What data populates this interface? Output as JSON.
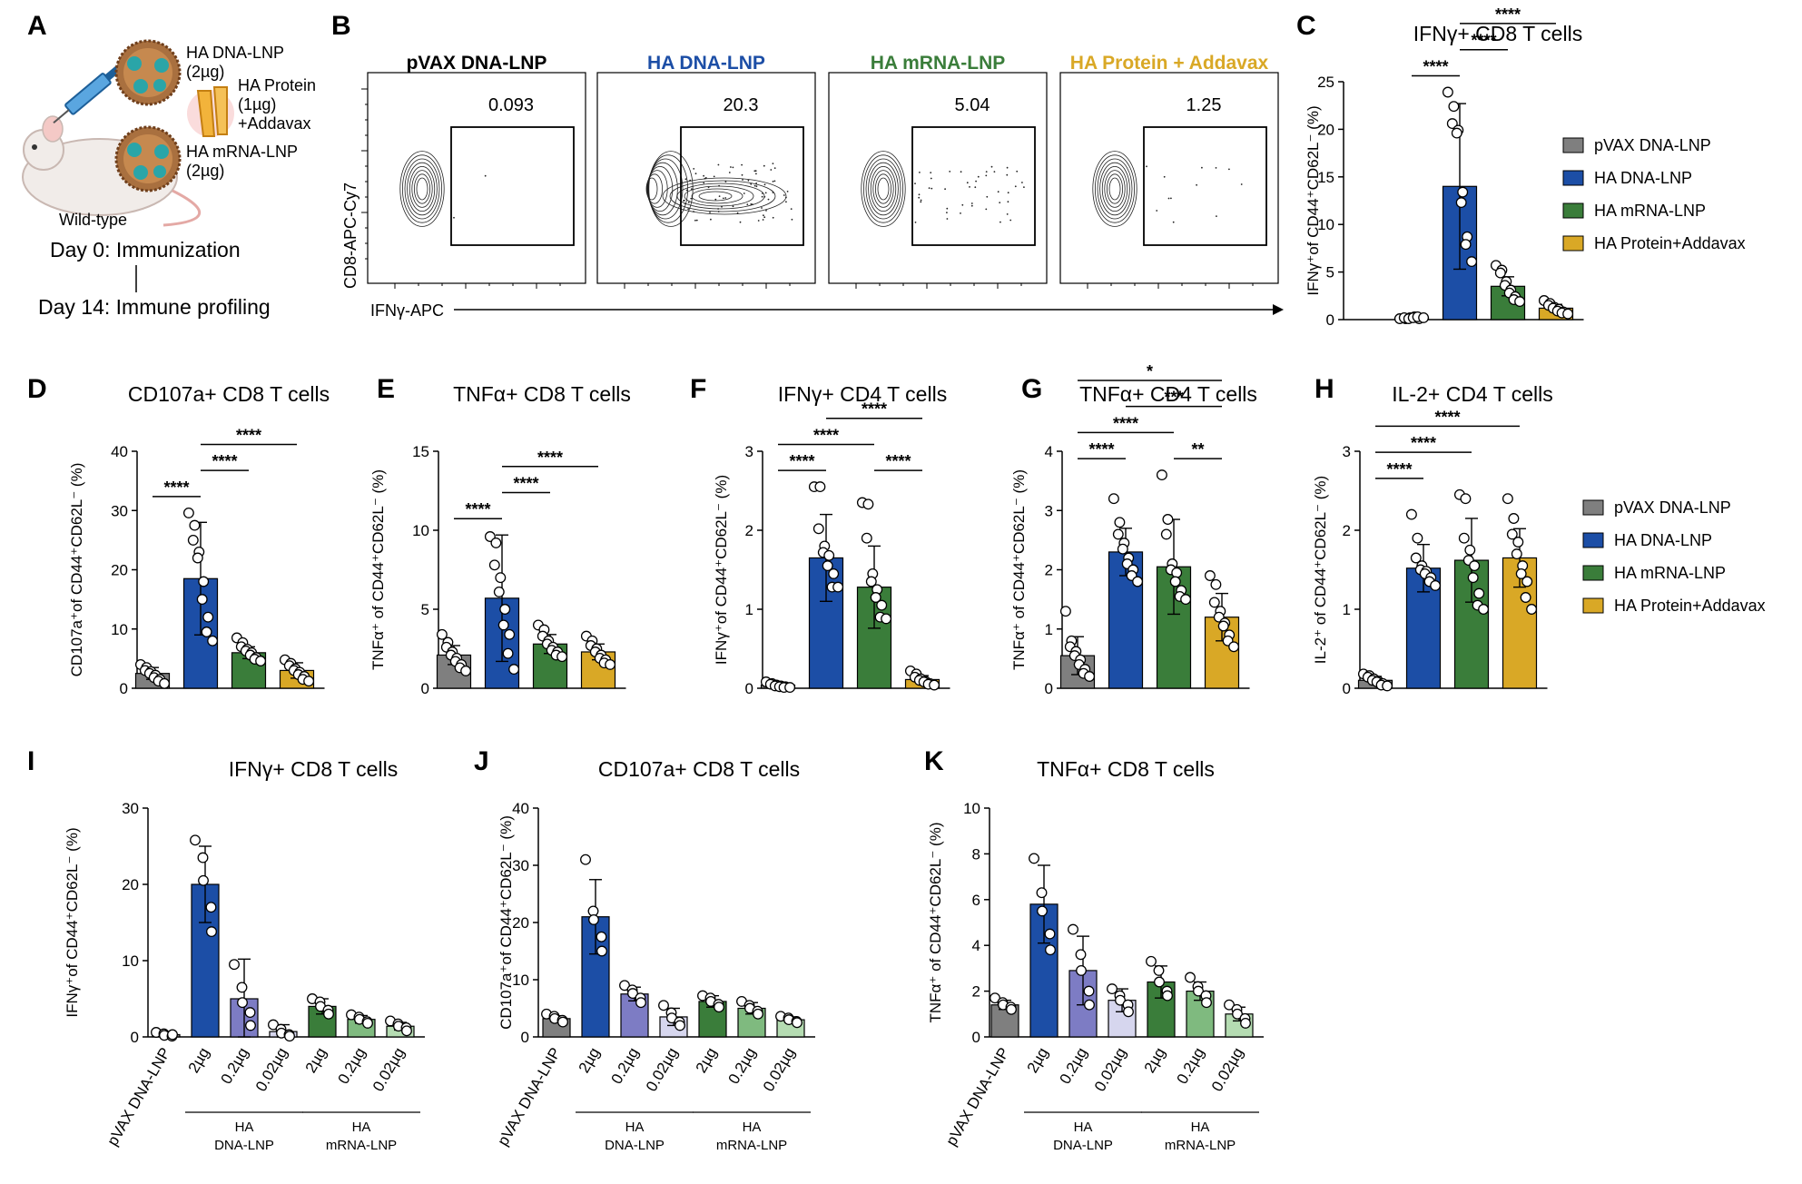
{
  "colors": {
    "pvax": "#7f7f7f",
    "ha_dna": "#1c4ea6",
    "ha_mrna": "#3a7d3a",
    "ha_protein": "#d9a826",
    "dna_02": "#7d7cc4",
    "dna_002": "#d6d6ee",
    "mrna_02": "#7fba7f",
    "mrna_002": "#b5dcb2"
  },
  "panel_a": {
    "label": "A",
    "items": [
      "HA DNA-LNP",
      "(2µg)",
      "HA Protein",
      "(1µg)",
      "+Addavax",
      "HA mRNA-LNP",
      "(2µg)",
      "Wild-type"
    ],
    "day0": "Day 0: Immunization",
    "day14": "Day 14: Immune profiling"
  },
  "panel_b": {
    "label": "B",
    "y_axis": "CD8-APC-Cy7",
    "x_axis": "IFNγ-APC",
    "plots": [
      {
        "title": "pVAX DNA-LNP",
        "value": "0.093",
        "color": "#000000"
      },
      {
        "title": "HA DNA-LNP",
        "value": "20.3",
        "color": "#1c4ea6"
      },
      {
        "title": "HA mRNA-LNP",
        "value": "5.04",
        "color": "#3a7d3a"
      },
      {
        "title": "HA Protein + Addavax",
        "value": "1.25",
        "color": "#d9a826"
      }
    ]
  },
  "legend_top": [
    "pVAX DNA-LNP",
    "HA DNA-LNP",
    "HA mRNA-LNP",
    "HA Protein+Addavax"
  ],
  "legend_mid": [
    "pVAX DNA-LNP",
    "HA DNA-LNP",
    "HA mRNA-LNP",
    "HA Protein+Addavax"
  ],
  "chart_data": [
    {
      "id": "C",
      "label": "C",
      "type": "bar",
      "title": "IFNγ+ CD8 T cells",
      "ylabel": "IFNγ⁺of CD44⁺CD62L⁻ (%)",
      "ylim": [
        0,
        25
      ],
      "yticks": [
        0,
        5,
        10,
        15,
        20,
        25
      ],
      "categories": [
        "pVAX DNA-LNP",
        "HA DNA-LNP",
        "HA mRNA-LNP",
        "HA Protein+Addavax"
      ],
      "values": [
        0.2,
        14.0,
        3.5,
        1.2
      ],
      "errors": [
        0.1,
        8.7,
        1.0,
        0.4
      ],
      "points": [
        [
          0.1,
          0.1,
          0.2,
          0.2,
          0.1,
          0.3,
          0.2,
          0.1,
          0.3,
          0.2
        ],
        [
          23.9,
          22.4,
          20.6,
          19.9,
          19.6,
          13.4,
          12.3,
          8.7,
          7.9,
          6.1
        ],
        [
          5.7,
          5.2,
          4.9,
          4.0,
          3.6,
          3.1,
          2.8,
          2.4,
          2.1,
          1.9
        ],
        [
          2.0,
          1.7,
          1.5,
          1.3,
          1.2,
          1.1,
          0.9,
          0.8,
          0.7,
          0.6
        ]
      ],
      "sig": [
        {
          "a": 0,
          "b": 1,
          "text": "****"
        },
        {
          "a": 1,
          "b": 2,
          "text": "****"
        },
        {
          "a": 1,
          "b": 3,
          "text": "****"
        }
      ]
    },
    {
      "id": "D",
      "label": "D",
      "type": "bar",
      "title": "CD107a+ CD8 T cells",
      "ylabel": "CD107a⁺of CD44⁺CD62L⁻ (%)",
      "ylim": [
        0,
        40
      ],
      "yticks": [
        0,
        10,
        20,
        30,
        40
      ],
      "categories": [
        "pVAX DNA-LNP",
        "HA DNA-LNP",
        "HA mRNA-LNP",
        "HA Protein+Addavax"
      ],
      "values": [
        2.5,
        18.5,
        6.0,
        3.0
      ],
      "errors": [
        1.0,
        9.5,
        1.0,
        1.3
      ],
      "points": [
        [
          4.0,
          3.5,
          3.0,
          2.8,
          2.5,
          2.2,
          1.8,
          1.5,
          1.2,
          0.8
        ],
        [
          29.6,
          27.5,
          25.0,
          23.0,
          22.0,
          18.0,
          15.0,
          12.0,
          9.5,
          8.0
        ],
        [
          8.5,
          7.7,
          7.0,
          6.6,
          6.3,
          6.0,
          5.6,
          5.2,
          4.9,
          4.6
        ],
        [
          4.8,
          4.2,
          3.8,
          3.3,
          3.0,
          2.7,
          2.3,
          2.0,
          1.5,
          1.2
        ]
      ],
      "sig": [
        {
          "a": 0,
          "b": 1,
          "text": "****"
        },
        {
          "a": 1,
          "b": 2,
          "text": "****"
        },
        {
          "a": 1,
          "b": 3,
          "text": "****"
        }
      ]
    },
    {
      "id": "E",
      "label": "E",
      "type": "bar",
      "title": "TNFα+ CD8 T cells",
      "ylabel": "TNFα⁺ of CD44⁺CD62L⁻ (%)",
      "ylim": [
        0,
        15
      ],
      "yticks": [
        0,
        5,
        10,
        15
      ],
      "categories": [
        "pVAX DNA-LNP",
        "HA DNA-LNP",
        "HA mRNA-LNP",
        "HA Protein+Addavax"
      ],
      "values": [
        2.1,
        5.7,
        2.8,
        2.3
      ],
      "errors": [
        0.6,
        4.0,
        0.6,
        0.5
      ],
      "points": [
        [
          3.4,
          2.9,
          2.6,
          2.3,
          2.1,
          1.9,
          1.7,
          1.5,
          1.3,
          1.1
        ],
        [
          9.6,
          9.2,
          7.8,
          7.0,
          6.1,
          5.0,
          4.0,
          3.4,
          2.2,
          1.2
        ],
        [
          4.0,
          3.7,
          3.3,
          3.0,
          2.8,
          2.6,
          2.4,
          2.3,
          2.1,
          2.0
        ],
        [
          3.3,
          3.0,
          2.7,
          2.5,
          2.3,
          2.1,
          1.9,
          1.8,
          1.6,
          1.5
        ]
      ],
      "sig": [
        {
          "a": 0,
          "b": 1,
          "text": "****"
        },
        {
          "a": 1,
          "b": 2,
          "text": "****"
        },
        {
          "a": 1,
          "b": 3,
          "text": "****"
        }
      ]
    },
    {
      "id": "F",
      "label": "F",
      "type": "bar",
      "title": "IFNγ+ CD4 T cells",
      "ylabel": "IFNγ⁺of CD44⁺CD62L⁻ (%)",
      "ylim": [
        0,
        3
      ],
      "yticks": [
        0,
        1,
        2,
        3
      ],
      "categories": [
        "pVAX DNA-LNP",
        "HA DNA-LNP",
        "HA mRNA-LNP",
        "HA Protein+Addavax"
      ],
      "values": [
        0.04,
        1.65,
        1.28,
        0.11
      ],
      "errors": [
        0.02,
        0.55,
        0.52,
        0.05
      ],
      "points": [
        [
          0.08,
          0.06,
          0.05,
          0.04,
          0.03,
          0.03,
          0.02,
          0.02,
          0.01,
          0.01
        ],
        [
          2.55,
          2.55,
          2.02,
          1.8,
          1.72,
          1.68,
          1.55,
          1.45,
          1.28,
          1.28
        ],
        [
          2.35,
          2.33,
          1.9,
          1.45,
          1.35,
          1.25,
          1.15,
          1.05,
          0.9,
          0.88
        ],
        [
          0.22,
          0.18,
          0.14,
          0.12,
          0.1,
          0.09,
          0.08,
          0.06,
          0.05,
          0.04
        ]
      ],
      "sig": [
        {
          "a": 0,
          "b": 1,
          "text": "****"
        },
        {
          "a": 0,
          "b": 2,
          "text": "****"
        },
        {
          "a": 1,
          "b": 3,
          "text": "****"
        },
        {
          "a": 2,
          "b": 3,
          "text": "****"
        }
      ]
    },
    {
      "id": "G",
      "label": "G",
      "type": "bar",
      "title": "TNFα+ CD4 T cells",
      "ylabel": "TNFα⁺ of CD44⁺CD62L⁻ (%)",
      "ylim": [
        0,
        4
      ],
      "yticks": [
        0,
        1,
        2,
        3,
        4
      ],
      "categories": [
        "pVAX DNA-LNP",
        "HA DNA-LNP",
        "HA mRNA-LNP",
        "HA Protein+Addavax"
      ],
      "values": [
        0.55,
        2.3,
        2.05,
        1.2
      ],
      "errors": [
        0.32,
        0.4,
        0.8,
        0.4
      ],
      "points": [
        [
          1.3,
          0.8,
          0.7,
          0.62,
          0.55,
          0.48,
          0.4,
          0.32,
          0.25,
          0.2
        ],
        [
          3.2,
          2.8,
          2.6,
          2.45,
          2.35,
          2.2,
          2.1,
          2.0,
          1.9,
          1.8
        ],
        [
          3.6,
          2.85,
          2.6,
          2.1,
          2.0,
          1.95,
          1.8,
          1.65,
          1.55,
          1.5
        ],
        [
          1.9,
          1.75,
          1.45,
          1.3,
          1.2,
          1.1,
          1.05,
          0.9,
          0.8,
          0.7
        ]
      ],
      "sig": [
        {
          "a": 0,
          "b": 1,
          "text": "****"
        },
        {
          "a": 0,
          "b": 2,
          "text": "****"
        },
        {
          "a": 0,
          "b": 3,
          "text": "*"
        },
        {
          "a": 1,
          "b": 3,
          "text": "***"
        },
        {
          "a": 2,
          "b": 3,
          "text": "**"
        }
      ]
    },
    {
      "id": "H",
      "label": "H",
      "type": "bar",
      "title": "IL-2+ CD4 T cells",
      "ylabel": "IL-2⁺ of CD44⁺CD62L⁻ (%)",
      "ylim": [
        0,
        3
      ],
      "yticks": [
        0,
        1,
        2,
        3
      ],
      "categories": [
        "pVAX DNA-LNP",
        "HA DNA-LNP",
        "HA mRNA-LNP",
        "HA Protein+Addavax"
      ],
      "values": [
        0.1,
        1.52,
        1.62,
        1.65
      ],
      "errors": [
        0.05,
        0.3,
        0.53,
        0.37
      ],
      "points": [
        [
          0.18,
          0.16,
          0.14,
          0.12,
          0.1,
          0.09,
          0.08,
          0.06,
          0.04,
          0.03
        ],
        [
          2.2,
          1.9,
          1.65,
          1.55,
          1.5,
          1.48,
          1.45,
          1.4,
          1.35,
          1.3
        ],
        [
          2.45,
          2.4,
          1.9,
          1.75,
          1.62,
          1.55,
          1.4,
          1.2,
          1.05,
          1.0
        ],
        [
          2.4,
          2.15,
          1.95,
          1.85,
          1.7,
          1.55,
          1.45,
          1.35,
          1.15,
          1.0
        ]
      ],
      "sig": [
        {
          "a": 0,
          "b": 1,
          "text": "****"
        },
        {
          "a": 0,
          "b": 2,
          "text": "****"
        },
        {
          "a": 0,
          "b": 3,
          "text": "****"
        }
      ]
    },
    {
      "id": "I",
      "label": "I",
      "type": "bar",
      "title": "IFNγ+ CD8 T cells",
      "ylabel": "IFNγ⁺of CD44⁺CD62L⁻ (%)",
      "ylim": [
        0,
        30
      ],
      "yticks": [
        0,
        10,
        20,
        30
      ],
      "categories": [
        "pVAX DNA-LNP",
        "2µg",
        "0.2µg",
        "0.02µg",
        "2µg",
        "0.2µg",
        "0.02µg"
      ],
      "group_labels": [
        {
          "from": 1,
          "to": 3,
          "line1": "HA",
          "line2": "DNA-LNP"
        },
        {
          "from": 4,
          "to": 6,
          "line1": "HA",
          "line2": "mRNA-LNP"
        }
      ],
      "values": [
        0.3,
        20.0,
        5.0,
        0.7,
        4.0,
        2.3,
        1.4
      ],
      "errors": [
        0.2,
        5.0,
        5.2,
        0.9,
        1.0,
        0.5,
        0.5
      ],
      "points": [
        [
          0.6,
          0.4,
          0.2,
          0.1,
          0.3
        ],
        [
          25.8,
          23.5,
          20.5,
          17.0,
          13.8
        ],
        [
          9.5,
          6.5,
          4.5,
          3.2,
          1.5
        ],
        [
          1.6,
          1.0,
          0.5,
          0.3,
          0.1
        ],
        [
          5.0,
          4.6,
          4.0,
          3.5,
          3.0
        ],
        [
          2.9,
          2.6,
          2.3,
          2.0,
          1.8
        ],
        [
          2.1,
          1.7,
          1.4,
          1.2,
          0.8
        ]
      ]
    },
    {
      "id": "J",
      "label": "J",
      "type": "bar",
      "title": "CD107a+ CD8 T cells",
      "ylabel": "CD107a⁺of CD44⁺CD62L⁻ (%)",
      "ylim": [
        0,
        40
      ],
      "yticks": [
        0,
        10,
        20,
        30,
        40
      ],
      "categories": [
        "pVAX DNA-LNP",
        "2µg",
        "0.2µg",
        "0.02µg",
        "2µg",
        "0.2µg",
        "0.02µg"
      ],
      "group_labels": [
        {
          "from": 1,
          "to": 3,
          "line1": "HA",
          "line2": "DNA-LNP"
        },
        {
          "from": 4,
          "to": 6,
          "line1": "HA",
          "line2": "mRNA-LNP"
        }
      ],
      "values": [
        3.2,
        21.0,
        7.5,
        3.5,
        6.2,
        5.0,
        3.0
      ],
      "errors": [
        0.5,
        6.5,
        1.2,
        1.5,
        1.0,
        1.0,
        0.5
      ],
      "points": [
        [
          4.0,
          3.6,
          3.2,
          2.9,
          2.6
        ],
        [
          31.0,
          22.0,
          20.5,
          17.5,
          15.0
        ],
        [
          9.0,
          8.2,
          7.6,
          6.8,
          6.0
        ],
        [
          5.5,
          4.2,
          3.3,
          2.6,
          2.0
        ],
        [
          7.2,
          6.8,
          6.2,
          5.7,
          5.2
        ],
        [
          6.2,
          5.5,
          5.0,
          4.5,
          4.0
        ],
        [
          3.6,
          3.3,
          3.0,
          2.7,
          2.5
        ]
      ]
    },
    {
      "id": "K",
      "label": "K",
      "type": "bar",
      "title": "TNFα+ CD8 T cells",
      "ylabel": "TNFα⁺ of CD44⁺CD62L⁻ (%)",
      "ylim": [
        0,
        10
      ],
      "yticks": [
        0,
        2,
        4,
        6,
        8,
        10
      ],
      "categories": [
        "pVAX DNA-LNP",
        "2µg",
        "0.2µg",
        "0.02µg",
        "2µg",
        "0.2µg",
        "0.02µg"
      ],
      "group_labels": [
        {
          "from": 1,
          "to": 3,
          "line1": "HA",
          "line2": "DNA-LNP"
        },
        {
          "from": 4,
          "to": 6,
          "line1": "HA",
          "line2": "mRNA-LNP"
        }
      ],
      "values": [
        1.4,
        5.8,
        2.9,
        1.6,
        2.4,
        2.0,
        1.0
      ],
      "errors": [
        0.2,
        1.7,
        1.5,
        0.5,
        0.7,
        0.4,
        0.3
      ],
      "points": [
        [
          1.7,
          1.5,
          1.4,
          1.3,
          1.2
        ],
        [
          7.8,
          6.3,
          5.5,
          4.5,
          3.8
        ],
        [
          4.7,
          3.6,
          2.9,
          2.0,
          1.4
        ],
        [
          2.1,
          1.8,
          1.6,
          1.4,
          1.1
        ],
        [
          3.3,
          2.9,
          2.4,
          2.0,
          1.8
        ],
        [
          2.6,
          2.2,
          2.0,
          1.8,
          1.5
        ],
        [
          1.4,
          1.2,
          1.0,
          0.8,
          0.6
        ]
      ]
    }
  ]
}
